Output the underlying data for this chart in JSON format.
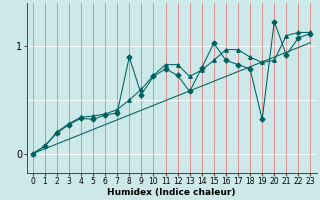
{
  "xlabel": "Humidex (Indice chaleur)",
  "background_color": "#cce8e8",
  "vgrid_color": "#e08080",
  "hgrid_color": "#ffffff",
  "line_color": "#006060",
  "x_data": [
    0,
    1,
    2,
    3,
    4,
    5,
    6,
    7,
    8,
    9,
    10,
    11,
    12,
    13,
    14,
    15,
    16,
    17,
    18,
    19,
    20,
    21,
    22,
    23
  ],
  "line1": [
    0.0,
    0.07,
    0.19,
    0.27,
    0.33,
    0.32,
    0.36,
    0.38,
    0.9,
    0.55,
    0.72,
    0.79,
    0.73,
    0.58,
    0.8,
    1.03,
    0.87,
    0.83,
    0.79,
    0.32,
    1.23,
    0.92,
    1.08,
    1.12
  ],
  "line2": [
    0.0,
    0.07,
    0.2,
    0.28,
    0.34,
    0.35,
    0.37,
    0.41,
    0.5,
    0.6,
    0.73,
    0.83,
    0.83,
    0.72,
    0.78,
    0.87,
    0.97,
    0.97,
    0.9,
    0.85,
    0.87,
    1.1,
    1.13,
    1.13
  ],
  "line_straight": [
    0.0,
    0.045,
    0.09,
    0.135,
    0.18,
    0.225,
    0.27,
    0.315,
    0.36,
    0.405,
    0.45,
    0.495,
    0.54,
    0.585,
    0.63,
    0.675,
    0.72,
    0.765,
    0.81,
    0.855,
    0.9,
    0.945,
    0.99,
    1.035
  ],
  "yticks": [
    0,
    1
  ],
  "ylim": [
    -0.18,
    1.4
  ],
  "xlim": [
    -0.5,
    23.5
  ],
  "xlabel_fontsize": 6.5,
  "tick_fontsize": 5.5,
  "ytick_fontsize": 7
}
